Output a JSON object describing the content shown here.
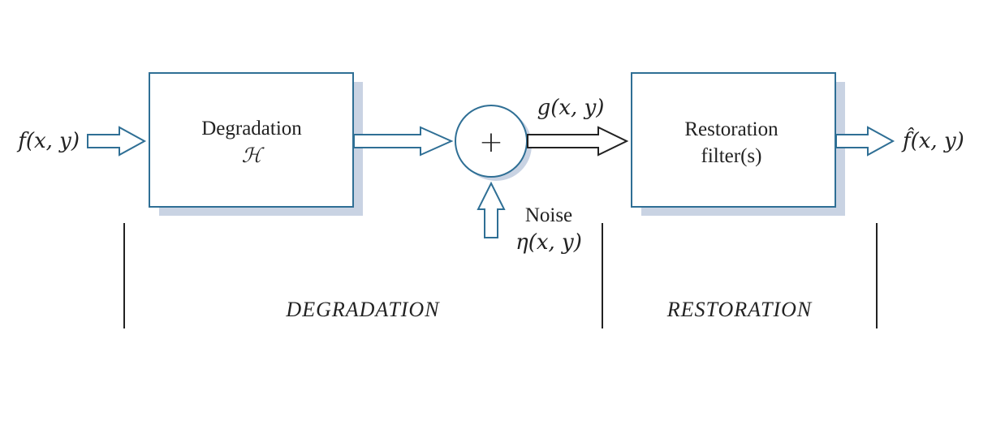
{
  "diagram": {
    "input_signal": "f(x, y)",
    "degradation_block": {
      "title": "Degradation",
      "symbol": "ℋ"
    },
    "adder_symbol": "+",
    "degraded_signal": "g(x, y)",
    "noise": {
      "label": "Noise",
      "signal": "η(x, y)"
    },
    "restoration_block": {
      "line1": "Restoration",
      "line2": "filter(s)"
    },
    "output_signal": "f̂(x, y)",
    "sections": {
      "degradation": "DEGRADATION",
      "restoration": "RESTORATION"
    }
  },
  "colors": {
    "box_border": "#2f6f95",
    "box_shadow": "#c9d3e3",
    "arrow_outline": "#2f6f95",
    "text": "#222222",
    "divider": "#222222"
  }
}
